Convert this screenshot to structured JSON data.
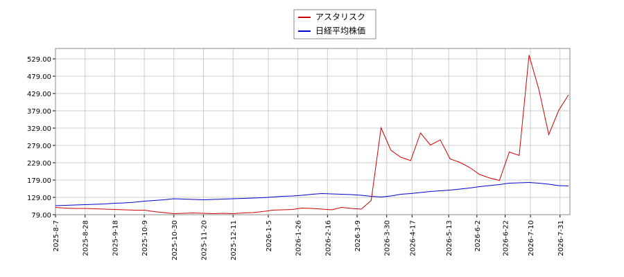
{
  "chart_data": {
    "type": "line",
    "x": [
      "2025-8-7",
      "2025-8-14",
      "2025-8-21",
      "2025-8-28",
      "2025-9-4",
      "2025-9-11",
      "2025-9-18",
      "2025-9-25",
      "2025-10-2",
      "2025-10-9",
      "2025-10-16",
      "2025-10-23",
      "2025-10-30",
      "2025-11-6",
      "2025-11-13",
      "2025-11-20",
      "2025-11-27",
      "2025-12-4",
      "2025-12-11",
      "2025-12-18",
      "2025-12-25",
      "2026-1-1",
      "2026-1-8",
      "2026-1-15",
      "2026-1-22",
      "2026-1-29",
      "2026-2-5",
      "2026-2-12",
      "2026-2-19",
      "2026-2-26",
      "2026-3-5",
      "2026-3-12",
      "2026-3-19",
      "2026-3-26",
      "2026-4-2",
      "2026-4-9",
      "2026-4-16",
      "2026-4-23",
      "2026-4-30",
      "2026-5-7",
      "2026-5-14",
      "2026-5-21",
      "2026-5-28",
      "2026-6-4",
      "2026-6-11",
      "2026-6-18",
      "2026-6-25",
      "2026-7-2",
      "2026-7-9",
      "2026-7-16",
      "2026-7-23",
      "2026-7-30",
      "2026-8-6"
    ],
    "series": [
      {
        "name": "アスタリスク",
        "color": "#cc0000",
        "values": [
          100,
          98,
          97,
          97,
          96,
          95,
          94,
          93,
          92,
          92,
          88,
          85,
          82,
          83,
          84,
          83,
          82,
          83,
          82,
          84,
          85,
          88,
          92,
          93,
          94,
          98,
          97,
          95,
          93,
          100,
          97,
          95,
          120,
          330,
          265,
          245,
          235,
          315,
          280,
          295,
          240,
          230,
          215,
          195,
          185,
          178,
          260,
          250,
          540,
          440,
          310,
          380,
          425
        ]
      },
      {
        "name": "日経平均株価",
        "color": "#0000cc",
        "values": [
          105,
          106,
          107,
          108,
          109,
          110,
          112,
          113,
          115,
          118,
          120,
          122,
          125,
          124,
          123,
          122,
          123,
          124,
          125,
          126,
          127,
          128,
          130,
          132,
          133,
          135,
          138,
          140,
          139,
          138,
          137,
          135,
          132,
          130,
          133,
          138,
          140,
          143,
          146,
          148,
          150,
          153,
          156,
          160,
          163,
          166,
          170,
          171,
          172,
          170,
          167,
          163,
          162
        ]
      }
    ],
    "xlim": [
      "2025-8-7",
      "2026-8-7"
    ],
    "xticks": [
      "2025-8-7",
      "2025-8-28",
      "2025-9-18",
      "2025-10-9",
      "2025-10-30",
      "2025-11-20",
      "2025-12-11",
      "2026-1-5",
      "2026-1-26",
      "2026-2-16",
      "2026-3-9",
      "2026-3-30",
      "2026-4-17",
      "2026-5-13",
      "2026-6-2",
      "2026-6-22",
      "2026-7-10",
      "2026-7-31"
    ],
    "ylim": [
      79,
      559
    ],
    "yticks": [
      {
        "value": 79,
        "label": "79.00"
      },
      {
        "value": 129,
        "label": "129.00"
      },
      {
        "value": 179,
        "label": "179.00"
      },
      {
        "value": 229,
        "label": "229.00"
      },
      {
        "value": 279,
        "label": "279.00"
      },
      {
        "value": 329,
        "label": "329.00"
      },
      {
        "value": 379,
        "label": "379.00"
      },
      {
        "value": 429,
        "label": "429.00"
      },
      {
        "value": 479,
        "label": "479.00"
      },
      {
        "value": 529,
        "label": "529.00"
      }
    ],
    "grid": true,
    "legend": "top"
  }
}
